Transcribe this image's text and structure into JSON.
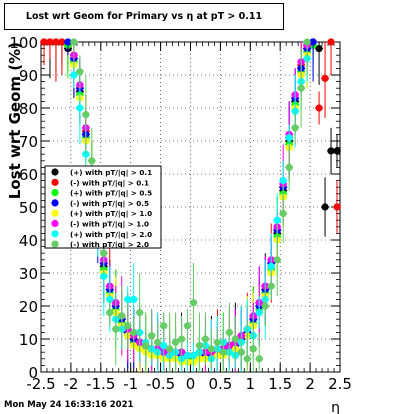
{
  "chart_data": {
    "type": "scatter",
    "title": "Lost wrt Geom for Primary vs   η at pT > 0.11",
    "xlabel": "η",
    "ylabel": "Lost wrt Geom (%)",
    "xlim": [
      -2.5,
      2.5
    ],
    "ylim": [
      0,
      100
    ],
    "x_ticks": [
      "-2.5",
      "-2",
      "-1.5",
      "-1",
      "-0.5",
      "0",
      "0.5",
      "1",
      "1.5",
      "2",
      "2.5"
    ],
    "y_ticks": [
      "0",
      "10",
      "20",
      "30",
      "40",
      "50",
      "60",
      "70",
      "80",
      "90",
      "100"
    ],
    "grid": true,
    "legend_position": "middle-left",
    "series": [
      {
        "name": "(+) with pT/|q| > 0.1",
        "color": "#000000",
        "x": [
          -2.45,
          -2.35,
          -2.25,
          -2.15,
          -2.05,
          -1.95,
          -1.85,
          -1.75,
          -1.65,
          -1.55,
          -1.45,
          -1.35,
          -1.25,
          -1.15,
          -1.05,
          -0.95,
          -0.85,
          -0.75,
          -0.65,
          -0.55,
          -0.45,
          -0.35,
          -0.25,
          -0.15,
          -0.05,
          0.05,
          0.15,
          0.25,
          0.35,
          0.45,
          0.55,
          0.65,
          0.75,
          0.85,
          0.95,
          1.05,
          1.15,
          1.25,
          1.35,
          1.45,
          1.55,
          1.65,
          1.75,
          1.85,
          1.95,
          2.05,
          2.15,
          2.25,
          2.35,
          2.45
        ],
        "y": [
          100,
          100,
          100,
          100,
          98,
          95,
          85,
          72,
          60,
          45,
          32,
          25,
          20,
          16,
          12,
          10,
          9,
          8,
          7,
          7,
          6,
          6,
          6,
          6,
          5,
          5,
          6,
          6,
          6,
          7,
          7,
          8,
          9,
          10,
          12,
          16,
          20,
          25,
          32,
          42,
          55,
          70,
          82,
          92,
          98,
          100,
          98,
          50,
          67,
          67
        ]
      },
      {
        "name": "(-) with pT/|q| > 0.1",
        "color": "#ff0000",
        "x": [
          -2.45,
          -2.35,
          -2.25,
          -2.15,
          -2.05,
          -1.95,
          -1.85,
          -1.75,
          -1.65,
          -1.55,
          -1.45,
          -1.35,
          -1.25,
          -1.15,
          -1.05,
          -0.95,
          -0.85,
          -0.75,
          -0.65,
          -0.55,
          -0.45,
          -0.35,
          -0.25,
          -0.15,
          -0.05,
          0.05,
          0.15,
          0.25,
          0.35,
          0.45,
          0.55,
          0.65,
          0.75,
          0.85,
          0.95,
          1.05,
          1.15,
          1.25,
          1.35,
          1.45,
          1.55,
          1.65,
          1.75,
          1.85,
          1.95,
          2.05,
          2.15,
          2.25,
          2.35,
          2.45
        ],
        "y": [
          100,
          100,
          100,
          100,
          99,
          96,
          86,
          73,
          61,
          46,
          33,
          26,
          21,
          16,
          13,
          10,
          9,
          8,
          7,
          6,
          6,
          6,
          5,
          5,
          5,
          5,
          5,
          6,
          6,
          7,
          7,
          8,
          9,
          11,
          13,
          17,
          21,
          26,
          33,
          43,
          56,
          71,
          83,
          93,
          99,
          100,
          80,
          89,
          100,
          50
        ]
      },
      {
        "name": "(+) with pT/|q| > 0.5",
        "color": "#00ff00",
        "x": [
          -2.05,
          -1.95,
          -1.85,
          -1.75,
          -1.65,
          -1.55,
          -1.45,
          -1.35,
          -1.25,
          -1.15,
          -1.05,
          -0.95,
          -0.85,
          -0.75,
          -0.65,
          -0.55,
          -0.45,
          -0.35,
          -0.25,
          -0.15,
          -0.05,
          0.05,
          0.15,
          0.25,
          0.35,
          0.45,
          0.55,
          0.65,
          0.75,
          0.85,
          0.95,
          1.05,
          1.15,
          1.25,
          1.35,
          1.45,
          1.55,
          1.65,
          1.75,
          1.85,
          1.95,
          2.05
        ],
        "y": [
          99,
          94,
          84,
          71,
          58,
          44,
          31,
          24,
          19,
          15,
          12,
          9,
          8,
          7,
          6,
          6,
          5,
          5,
          5,
          5,
          4,
          4,
          5,
          5,
          5,
          6,
          6,
          7,
          8,
          10,
          12,
          15,
          19,
          24,
          31,
          41,
          54,
          69,
          81,
          91,
          97,
          99
        ]
      },
      {
        "name": "(-) with pT/|q| > 0.5",
        "color": "#0000ff",
        "x": [
          -2.05,
          -1.95,
          -1.85,
          -1.75,
          -1.65,
          -1.55,
          -1.45,
          -1.35,
          -1.25,
          -1.15,
          -1.05,
          -0.95,
          -0.85,
          -0.75,
          -0.65,
          -0.55,
          -0.45,
          -0.35,
          -0.25,
          -0.15,
          -0.05,
          0.05,
          0.15,
          0.25,
          0.35,
          0.45,
          0.55,
          0.65,
          0.75,
          0.85,
          0.95,
          1.05,
          1.15,
          1.25,
          1.35,
          1.45,
          1.55,
          1.65,
          1.75,
          1.85,
          1.95,
          2.05
        ],
        "y": [
          100,
          95,
          86,
          72,
          60,
          45,
          33,
          25,
          20,
          16,
          12,
          10,
          8,
          7,
          7,
          6,
          6,
          5,
          5,
          5,
          5,
          5,
          5,
          5,
          6,
          6,
          7,
          7,
          8,
          10,
          12,
          16,
          20,
          25,
          33,
          43,
          56,
          71,
          83,
          92,
          98,
          100
        ]
      },
      {
        "name": "(+) with pT/|q| > 1.0",
        "color": "#ffff00",
        "x": [
          -1.95,
          -1.85,
          -1.75,
          -1.65,
          -1.55,
          -1.45,
          -1.35,
          -1.25,
          -1.15,
          -1.05,
          -0.95,
          -0.85,
          -0.75,
          -0.65,
          -0.55,
          -0.45,
          -0.35,
          -0.25,
          -0.15,
          -0.05,
          0.05,
          0.15,
          0.25,
          0.35,
          0.45,
          0.55,
          0.65,
          0.75,
          0.85,
          0.95,
          1.05,
          1.15,
          1.25,
          1.35,
          1.45,
          1.55,
          1.65,
          1.75,
          1.85,
          1.95
        ],
        "y": [
          93,
          83,
          70,
          57,
          43,
          30,
          23,
          18,
          14,
          11,
          8,
          7,
          6,
          5,
          5,
          4,
          4,
          4,
          3,
          3,
          3,
          4,
          4,
          4,
          5,
          5,
          6,
          7,
          9,
          11,
          14,
          18,
          23,
          30,
          40,
          53,
          68,
          80,
          90,
          96
        ]
      },
      {
        "name": "(-) with pT/|q| > 1.0",
        "color": "#ff00ff",
        "x": [
          -1.95,
          -1.85,
          -1.75,
          -1.65,
          -1.55,
          -1.45,
          -1.35,
          -1.25,
          -1.15,
          -1.05,
          -0.95,
          -0.85,
          -0.75,
          -0.65,
          -0.55,
          -0.45,
          -0.35,
          -0.25,
          -0.15,
          -0.05,
          0.05,
          0.15,
          0.25,
          0.35,
          0.45,
          0.55,
          0.65,
          0.75,
          0.85,
          0.95,
          1.05,
          1.15,
          1.25,
          1.35,
          1.45,
          1.55,
          1.65,
          1.75,
          1.85,
          1.95
        ],
        "y": [
          96,
          87,
          74,
          61,
          47,
          34,
          26,
          21,
          17,
          13,
          11,
          9,
          8,
          7,
          7,
          6,
          6,
          6,
          6,
          5,
          5,
          6,
          6,
          6,
          7,
          7,
          8,
          9,
          11,
          13,
          17,
          21,
          26,
          34,
          44,
          57,
          72,
          84,
          94,
          99
        ]
      },
      {
        "name": "(+) with pT/|q| > 2.0",
        "color": "#00ffff",
        "x": [
          -1.95,
          -1.85,
          -1.75,
          -1.65,
          -1.55,
          -1.45,
          -1.35,
          -1.25,
          -1.15,
          -1.05,
          -0.95,
          -0.85,
          -0.75,
          -0.65,
          -0.55,
          -0.45,
          -0.35,
          -0.25,
          -0.15,
          -0.05,
          0.05,
          0.15,
          0.25,
          0.35,
          0.45,
          0.55,
          0.65,
          0.75,
          0.85,
          0.95,
          1.05,
          1.15,
          1.25,
          1.35,
          1.45,
          1.55,
          1.65,
          1.75,
          1.85,
          1.95
        ],
        "y": [
          90,
          80,
          66,
          54,
          40,
          29,
          22,
          16,
          13,
          22,
          22,
          12,
          9,
          7,
          6,
          8,
          5,
          6,
          4,
          5,
          5,
          6,
          8,
          4,
          7,
          9,
          6,
          5,
          9,
          13,
          11,
          18,
          22,
          32,
          46,
          58,
          71,
          79,
          88,
          95
        ]
      },
      {
        "name": "(-) with pT/|q| > 2.0",
        "color": "#66cc66",
        "x": [
          -1.95,
          -1.85,
          -1.75,
          -1.65,
          -1.55,
          -1.45,
          -1.35,
          -1.25,
          -1.15,
          -1.05,
          -0.95,
          -0.85,
          -0.75,
          -0.65,
          -0.55,
          -0.45,
          -0.35,
          -0.25,
          -0.15,
          -0.05,
          0.05,
          0.15,
          0.25,
          0.35,
          0.45,
          0.55,
          0.65,
          0.75,
          0.85,
          0.95,
          1.05,
          1.15,
          1.25,
          1.35,
          1.45,
          1.55,
          1.65,
          1.75,
          1.85,
          1.95
        ],
        "y": [
          100,
          91,
          78,
          64,
          50,
          36,
          18,
          13,
          17,
          14,
          12,
          18,
          8,
          11,
          9,
          14,
          7,
          9,
          10,
          14,
          21,
          8,
          10,
          7,
          9,
          6,
          12,
          10,
          6,
          4,
          7,
          4,
          20,
          26,
          34,
          48,
          62,
          74,
          86,
          100
        ]
      }
    ]
  },
  "footer": {
    "date": "Mon May 24 16:33:16 2021"
  }
}
